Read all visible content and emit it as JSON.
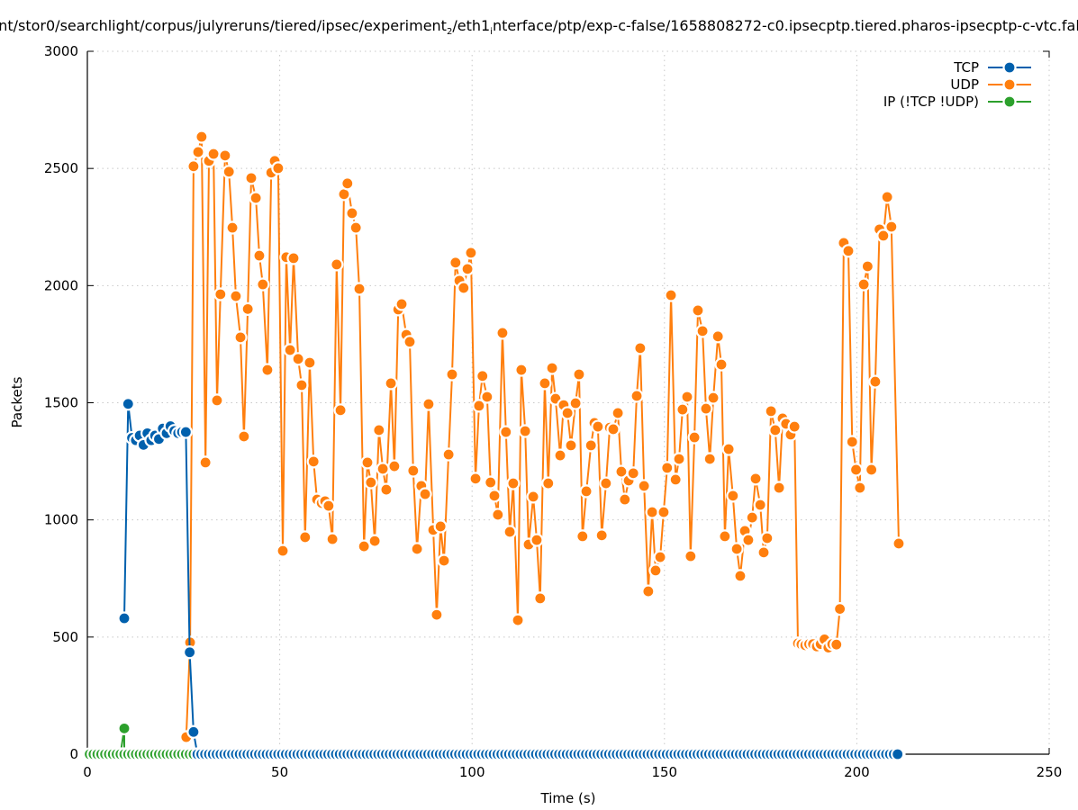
{
  "chart_data": {
    "type": "line",
    "title": {
      "part1": "nt/stor0/searchlight/corpus/julyreruns/tiered/ipsec/experiment",
      "sub1": "2",
      "part2": "/eth1",
      "sub2": "i",
      "part3": "nterface/ptp/exp-c-false/1658808272-c0.ipsecptp.tiered.pharos-ipsecptp-c-vtc.fal"
    },
    "xlabel": "Time (s)",
    "ylabel": "Packets",
    "xlim": [
      0,
      250
    ],
    "ylim": [
      0,
      3000
    ],
    "xticks": [
      0,
      50,
      100,
      150,
      200,
      250
    ],
    "yticks": [
      0,
      500,
      1000,
      1500,
      2000,
      2500,
      3000
    ],
    "grid": true,
    "legend_position": "top-right",
    "series": [
      {
        "name": "TCP",
        "color": "#0060ad",
        "points": [
          [
            9.6,
            580
          ],
          [
            10.6,
            1495
          ],
          [
            11.6,
            1350
          ],
          [
            12.6,
            1340
          ],
          [
            13.6,
            1360
          ],
          [
            14.6,
            1320
          ],
          [
            15.6,
            1370
          ],
          [
            16.6,
            1340
          ],
          [
            17.6,
            1360
          ],
          [
            18.6,
            1345
          ],
          [
            19.6,
            1390
          ],
          [
            20.6,
            1370
          ],
          [
            21.6,
            1400
          ],
          [
            22.6,
            1380
          ],
          [
            23.6,
            1370
          ],
          [
            24.6,
            1375
          ],
          [
            25.6,
            1375
          ],
          [
            26.6,
            435
          ],
          [
            27.6,
            95
          ]
        ],
        "zero_from": 28.6,
        "zero_to": 210.9
      },
      {
        "name": "UDP",
        "color": "#ff7f0e",
        "points": [
          [
            25.7,
            73
          ],
          [
            26.7,
            477
          ],
          [
            27.6,
            2509
          ],
          [
            28.8,
            2570
          ],
          [
            29.7,
            2635
          ],
          [
            30.7,
            1245
          ],
          [
            31.6,
            2532
          ],
          [
            32.8,
            2562
          ],
          [
            33.7,
            1510
          ],
          [
            34.6,
            1963
          ],
          [
            35.8,
            2555
          ],
          [
            36.8,
            2486
          ],
          [
            37.7,
            2247
          ],
          [
            38.6,
            1955
          ],
          [
            39.8,
            1779
          ],
          [
            40.7,
            1356
          ],
          [
            41.7,
            1900
          ],
          [
            42.6,
            2459
          ],
          [
            43.8,
            2374
          ],
          [
            44.7,
            2128
          ],
          [
            45.6,
            2005
          ],
          [
            46.8,
            1640
          ],
          [
            47.8,
            2482
          ],
          [
            48.7,
            2532
          ],
          [
            49.6,
            2501
          ],
          [
            50.8,
            868
          ],
          [
            51.7,
            2121
          ],
          [
            52.7,
            1725
          ],
          [
            53.6,
            2117
          ],
          [
            54.8,
            1687
          ],
          [
            55.7,
            1575
          ],
          [
            56.6,
            926
          ],
          [
            57.8,
            1671
          ],
          [
            58.8,
            1249
          ],
          [
            59.7,
            1087
          ],
          [
            60.9,
            1072
          ],
          [
            61.8,
            1080
          ],
          [
            62.7,
            1060
          ],
          [
            63.7,
            918
          ],
          [
            64.8,
            2090
          ],
          [
            65.8,
            1468
          ],
          [
            66.7,
            2390
          ],
          [
            67.6,
            2436
          ],
          [
            68.8,
            2309
          ],
          [
            69.8,
            2247
          ],
          [
            70.7,
            1986
          ],
          [
            71.9,
            887
          ],
          [
            72.8,
            1245
          ],
          [
            73.7,
            1160
          ],
          [
            74.7,
            910
          ],
          [
            75.8,
            1383
          ],
          [
            76.8,
            1218
          ],
          [
            77.7,
            1129
          ],
          [
            78.9,
            1583
          ],
          [
            79.8,
            1229
          ],
          [
            80.8,
            1898
          ],
          [
            81.7,
            1921
          ],
          [
            82.9,
            1790
          ],
          [
            83.8,
            1760
          ],
          [
            84.7,
            1210
          ],
          [
            85.7,
            876
          ],
          [
            86.8,
            1145
          ],
          [
            87.8,
            1110
          ],
          [
            88.7,
            1494
          ],
          [
            89.9,
            957
          ],
          [
            90.8,
            595
          ],
          [
            91.8,
            972
          ],
          [
            92.7,
            826
          ],
          [
            93.9,
            1279
          ],
          [
            94.8,
            1621
          ],
          [
            95.7,
            2098
          ],
          [
            96.7,
            2021
          ],
          [
            97.8,
            1990
          ],
          [
            98.8,
            2071
          ],
          [
            99.7,
            2140
          ],
          [
            100.9,
            1176
          ],
          [
            101.8,
            1487
          ],
          [
            102.7,
            1614
          ],
          [
            103.9,
            1525
          ],
          [
            104.8,
            1160
          ],
          [
            105.8,
            1103
          ],
          [
            106.7,
            1022
          ],
          [
            107.9,
            1798
          ],
          [
            108.8,
            1375
          ],
          [
            109.8,
            949
          ],
          [
            110.7,
            1156
          ],
          [
            111.9,
            572
          ],
          [
            112.8,
            1640
          ],
          [
            113.8,
            1379
          ],
          [
            114.7,
            895
          ],
          [
            115.9,
            1099
          ],
          [
            116.8,
            914
          ],
          [
            117.7,
            665
          ],
          [
            118.9,
            1583
          ],
          [
            119.8,
            1156
          ],
          [
            120.8,
            1648
          ],
          [
            121.7,
            1517
          ],
          [
            122.9,
            1275
          ],
          [
            123.8,
            1490
          ],
          [
            124.8,
            1456
          ],
          [
            125.7,
            1318
          ],
          [
            126.9,
            1498
          ],
          [
            127.8,
            1621
          ],
          [
            128.7,
            930
          ],
          [
            129.7,
            1122
          ],
          [
            130.9,
            1318
          ],
          [
            131.8,
            1414
          ],
          [
            132.7,
            1398
          ],
          [
            133.7,
            934
          ],
          [
            134.8,
            1156
          ],
          [
            135.8,
            1394
          ],
          [
            136.7,
            1387
          ],
          [
            137.9,
            1456
          ],
          [
            138.8,
            1206
          ],
          [
            139.7,
            1087
          ],
          [
            140.7,
            1168
          ],
          [
            141.9,
            1199
          ],
          [
            142.8,
            1529
          ],
          [
            143.7,
            1733
          ],
          [
            144.7,
            1145
          ],
          [
            145.8,
            695
          ],
          [
            146.8,
            1033
          ],
          [
            147.7,
            784
          ],
          [
            148.9,
            841
          ],
          [
            149.8,
            1033
          ],
          [
            150.7,
            1222
          ],
          [
            151.7,
            1959
          ],
          [
            152.9,
            1172
          ],
          [
            153.8,
            1260
          ],
          [
            154.7,
            1471
          ],
          [
            155.9,
            1525
          ],
          [
            156.8,
            845
          ],
          [
            157.8,
            1352
          ],
          [
            158.7,
            1894
          ],
          [
            159.9,
            1806
          ],
          [
            160.8,
            1475
          ],
          [
            161.8,
            1260
          ],
          [
            162.7,
            1521
          ],
          [
            163.9,
            1783
          ],
          [
            164.8,
            1663
          ],
          [
            165.7,
            930
          ],
          [
            166.7,
            1302
          ],
          [
            167.8,
            1103
          ],
          [
            168.8,
            876
          ],
          [
            169.7,
            761
          ],
          [
            170.9,
            953
          ],
          [
            171.8,
            914
          ],
          [
            172.8,
            1010
          ],
          [
            173.7,
            1176
          ],
          [
            174.9,
            1064
          ],
          [
            175.8,
            861
          ],
          [
            176.7,
            922
          ],
          [
            177.7,
            1464
          ],
          [
            178.8,
            1383
          ],
          [
            179.8,
            1137
          ],
          [
            180.7,
            1433
          ],
          [
            181.6,
            1410
          ],
          [
            182.8,
            1364
          ],
          [
            183.8,
            1398
          ],
          [
            184.7,
            473
          ],
          [
            185.6,
            469
          ],
          [
            186.6,
            465
          ],
          [
            187.6,
            470
          ],
          [
            188.6,
            470
          ],
          [
            189.6,
            460
          ],
          [
            190.6,
            470
          ],
          [
            191.6,
            490
          ],
          [
            192.6,
            455
          ],
          [
            193.6,
            470
          ],
          [
            194.7,
            468
          ],
          [
            195.6,
            620
          ],
          [
            196.6,
            2182
          ],
          [
            197.8,
            2148
          ],
          [
            198.8,
            1333
          ],
          [
            199.8,
            1214
          ],
          [
            200.8,
            1137
          ],
          [
            201.8,
            2005
          ],
          [
            202.8,
            2082
          ],
          [
            203.8,
            1214
          ],
          [
            204.8,
            1590
          ],
          [
            205.9,
            2240
          ],
          [
            206.9,
            2213
          ],
          [
            207.9,
            2378
          ],
          [
            209.0,
            2251
          ],
          [
            210.9,
            899
          ]
        ]
      },
      {
        "name": "IP (!TCP  !UDP)",
        "color": "#2ca02c",
        "points": [
          [
            9.6,
            110
          ],
          [
            210.9,
            0
          ]
        ],
        "zero_from": 0.6,
        "zero_to": 209.6
      }
    ]
  }
}
